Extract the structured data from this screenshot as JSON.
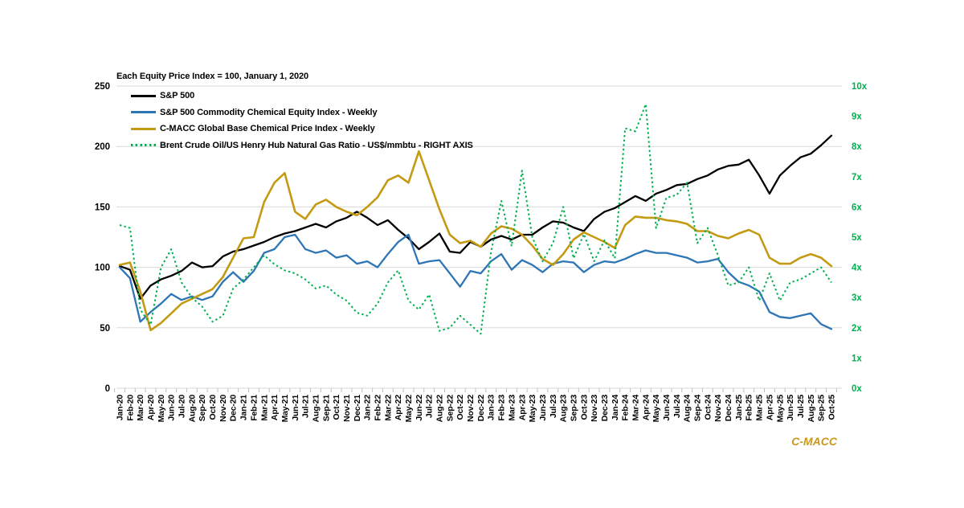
{
  "watermark": "C-MACC",
  "colors": {
    "background": "#ffffff",
    "gridline": "#D9D9D9",
    "tick": "#BFBFBF",
    "left_axis_text": "#000000",
    "right_axis_text": "#00B050",
    "watermark_gold": "#C9971C"
  },
  "chart_data": {
    "type": "line",
    "title": "Each Equity Price Index = 100, January 1, 2020",
    "grid": "horizontal",
    "legend_position": "top-left-inside",
    "x_labels": [
      "Jan-20",
      "Feb-20",
      "Mar-20",
      "Apr-20",
      "May-20",
      "Jun-20",
      "Jul-20",
      "Aug-20",
      "Sep-20",
      "Oct-20",
      "Nov-20",
      "Dec-20",
      "Jan-21",
      "Feb-21",
      "Mar-21",
      "Apr-21",
      "May-21",
      "Jun-21",
      "Jul-21",
      "Aug-21",
      "Sep-21",
      "Oct-21",
      "Nov-21",
      "Dec-21",
      "Jan-22",
      "Feb-22",
      "Mar-22",
      "Apr-22",
      "May-22",
      "Jun-22",
      "Jul-22",
      "Aug-22",
      "Sep-22",
      "Oct-22",
      "Nov-22",
      "Dec-22",
      "Jan-23",
      "Feb-23",
      "Mar-23",
      "Apr-23",
      "May-23",
      "Jun-23",
      "Jul-23",
      "Aug-23",
      "Sep-23",
      "Oct-23",
      "Nov-23",
      "Dec-23",
      "Jan-24",
      "Feb-24",
      "Mar-24",
      "Apr-24",
      "May-24",
      "Jun-24",
      "Jul-24",
      "Aug-24",
      "Sep-24",
      "Oct-24",
      "Nov-24",
      "Dec-24",
      "Jan-25",
      "Feb-25",
      "Mar-25",
      "Apr-25",
      "May-25",
      "Jun-25",
      "Jul-25",
      "Aug-25",
      "Sep-25",
      "Oct-25"
    ],
    "left_axis": {
      "min": 0,
      "max": 250,
      "step": 50,
      "ticks": [
        "0",
        "50",
        "100",
        "150",
        "200",
        "250"
      ]
    },
    "right_axis": {
      "min": 0,
      "max": 10,
      "step": 1,
      "ticks": [
        "0x",
        "1x",
        "2x",
        "3x",
        "4x",
        "5x",
        "6x",
        "7x",
        "8x",
        "9x",
        "10x"
      ],
      "color": "#00B050"
    },
    "series": [
      {
        "name": "S&P 500",
        "color": "#000000",
        "style": "solid",
        "axis": "left",
        "values": [
          101,
          98,
          74,
          85,
          90,
          93,
          97,
          104,
          100,
          101,
          109,
          113,
          115,
          118,
          121,
          125,
          128,
          130,
          133,
          136,
          133,
          138,
          141,
          146,
          141,
          135,
          139,
          131,
          124,
          115,
          121,
          128,
          113,
          112,
          121,
          117,
          123,
          126,
          123,
          127,
          127,
          133,
          138,
          137,
          133,
          130,
          140,
          146,
          149,
          154,
          159,
          155,
          161,
          164,
          168,
          169,
          173,
          176,
          181,
          184,
          185,
          189,
          176,
          161,
          176,
          184,
          191,
          194,
          201,
          209
        ]
      },
      {
        "name": "S&P 500 Commodity Chemical Equity Index - Weekly",
        "color": "#2E75B6",
        "style": "solid",
        "axis": "left",
        "values": [
          100,
          91,
          55,
          63,
          70,
          78,
          73,
          76,
          73,
          76,
          88,
          96,
          88,
          97,
          112,
          115,
          125,
          127,
          115,
          112,
          114,
          108,
          110,
          103,
          105,
          100,
          111,
          121,
          127,
          103,
          105,
          106,
          95,
          84,
          97,
          95,
          105,
          111,
          98,
          106,
          102,
          96,
          103,
          105,
          104,
          96,
          102,
          105,
          104,
          107,
          111,
          114,
          112,
          112,
          110,
          108,
          104,
          105,
          107,
          96,
          88,
          85,
          80,
          63,
          59,
          58,
          60,
          62,
          53,
          49
        ]
      },
      {
        "name": "C-MACC Global Base Chemical Price Index - Weekly",
        "color": "#C49A12",
        "style": "solid",
        "axis": "left",
        "values": [
          102,
          104,
          80,
          48,
          54,
          62,
          70,
          74,
          78,
          82,
          92,
          108,
          124,
          125,
          154,
          170,
          178,
          146,
          140,
          152,
          156,
          150,
          146,
          143,
          150,
          158,
          172,
          176,
          170,
          196,
          172,
          148,
          127,
          120,
          122,
          117,
          128,
          134,
          132,
          127,
          118,
          107,
          102,
          111,
          123,
          129,
          125,
          121,
          116,
          135,
          142,
          141,
          141,
          139,
          138,
          136,
          130,
          130,
          126,
          124,
          128,
          131,
          127,
          108,
          103,
          103,
          108,
          111,
          108,
          101
        ]
      },
      {
        "name": "Brent Crude Oil/US Henry Hub Natural Gas Ratio - US$/mmbtu - RIGHT AXIS",
        "color": "#00B050",
        "style": "dotted",
        "axis": "right",
        "values": [
          5.4,
          5.3,
          2.6,
          2.1,
          4.0,
          4.6,
          3.5,
          3.0,
          2.7,
          2.2,
          2.4,
          3.3,
          3.6,
          4.0,
          4.4,
          4.1,
          3.9,
          3.8,
          3.6,
          3.3,
          3.4,
          3.1,
          2.9,
          2.5,
          2.4,
          2.8,
          3.5,
          3.9,
          2.9,
          2.6,
          3.1,
          1.9,
          2.0,
          2.4,
          2.1,
          1.8,
          4.5,
          6.2,
          4.7,
          7.2,
          5.0,
          4.2,
          4.8,
          6.0,
          4.3,
          5.1,
          4.2,
          4.9,
          4.3,
          8.6,
          8.5,
          9.4,
          5.3,
          6.3,
          6.4,
          6.8,
          4.8,
          5.3,
          4.4,
          3.4,
          3.5,
          4.0,
          2.9,
          3.8,
          2.9,
          3.5,
          3.6,
          3.8,
          4.0,
          3.5
        ]
      }
    ]
  }
}
